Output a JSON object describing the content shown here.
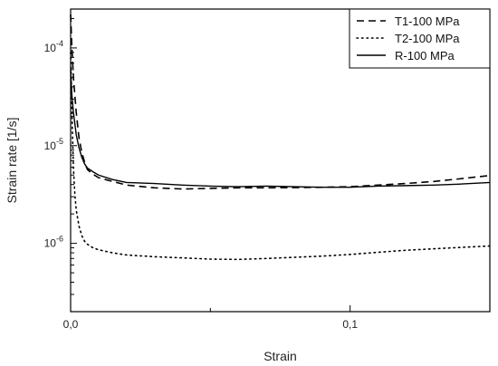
{
  "chart_data": {
    "type": "line",
    "xlabel": "Strain",
    "ylabel": "Strain rate [1/s]",
    "xlim": [
      0,
      0.15
    ],
    "ylim": [
      2e-07,
      0.00025
    ],
    "y_scale": "log",
    "x_ticks": [
      {
        "value": 0.0,
        "label": "0,0"
      },
      {
        "value": 0.1,
        "label": "0,1"
      }
    ],
    "y_ticks": [
      {
        "value": 1e-06,
        "base": "10",
        "exp": "-6"
      },
      {
        "value": 1e-05,
        "base": "10",
        "exp": "-5"
      },
      {
        "value": 0.0001,
        "base": "10",
        "exp": "-4"
      }
    ],
    "legend_position": "top-right",
    "series": [
      {
        "name": "T1-100 MPa",
        "style": "dashed",
        "x": [
          0,
          0.0004,
          0.001,
          0.002,
          0.003,
          0.004,
          0.005,
          0.006,
          0.008,
          0.01,
          0.015,
          0.02,
          0.03,
          0.04,
          0.05,
          0.06,
          0.07,
          0.08,
          0.09,
          0.1,
          0.11,
          0.12,
          0.13,
          0.14,
          0.15
        ],
        "y": [
          0.00022,
          0.00011,
          5e-05,
          2.2e-05,
          1.2e-05,
          8.5e-06,
          6.8e-06,
          5.7e-06,
          5.1e-06,
          4.7e-06,
          4.3e-06,
          3.95e-06,
          3.7e-06,
          3.6e-06,
          3.65e-06,
          3.7e-06,
          3.7e-06,
          3.72e-06,
          3.75e-06,
          3.8e-06,
          3.95e-06,
          4.1e-06,
          4.3e-06,
          4.6e-06,
          4.95e-06
        ]
      },
      {
        "name": "T2-100 MPa",
        "style": "dotted",
        "x": [
          0,
          0.0003,
          0.0006,
          0.001,
          0.0015,
          0.002,
          0.003,
          0.004,
          0.005,
          0.006,
          0.008,
          0.01,
          0.015,
          0.02,
          0.03,
          0.04,
          0.05,
          0.06,
          0.07,
          0.08,
          0.09,
          0.1,
          0.11,
          0.12,
          0.13,
          0.14,
          0.15
        ],
        "y": [
          9e-05,
          4e-05,
          1.5e-05,
          6e-06,
          3.2e-06,
          2.2e-06,
          1.5e-06,
          1.2e-06,
          1.05e-06,
          9.8e-07,
          9e-07,
          8.6e-07,
          8e-07,
          7.6e-07,
          7.3e-07,
          7.1e-07,
          6.9e-07,
          6.85e-07,
          7e-07,
          7.2e-07,
          7.4e-07,
          7.7e-07,
          8.1e-07,
          8.5e-07,
          8.8e-07,
          9.1e-07,
          9.4e-07
        ]
      },
      {
        "name": "R-100 MPa",
        "style": "solid",
        "x": [
          0,
          0.0004,
          0.001,
          0.002,
          0.003,
          0.004,
          0.005,
          0.006,
          0.008,
          0.01,
          0.015,
          0.02,
          0.03,
          0.04,
          0.05,
          0.06,
          0.07,
          0.08,
          0.09,
          0.1,
          0.11,
          0.12,
          0.13,
          0.14,
          0.15
        ],
        "y": [
          6e-05,
          3.4e-05,
          2.2e-05,
          1.3e-05,
          9.5e-06,
          7.6e-06,
          6.5e-06,
          5.9e-06,
          5.4e-06,
          5e-06,
          4.5e-06,
          4.2e-06,
          4.1e-06,
          3.95e-06,
          3.85e-06,
          3.8e-06,
          3.85e-06,
          3.8e-06,
          3.75e-06,
          3.75e-06,
          3.85e-06,
          3.9e-06,
          3.95e-06,
          4.05e-06,
          4.2e-06
        ]
      }
    ]
  }
}
